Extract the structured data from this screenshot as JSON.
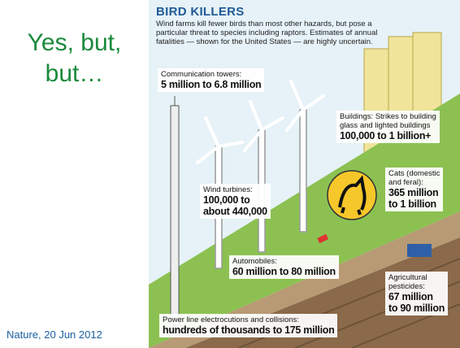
{
  "slide": {
    "title_lines": [
      "Yes, but,",
      "but…"
    ],
    "citation": "Nature, 20 Jun 2012"
  },
  "infographic": {
    "title": "BIRD KILLERS",
    "subtitle_lines": [
      "Wind farms kill fewer birds than most other hazards, but pose a",
      "particular threat to species including raptors. Estimates of annual",
      "fatalities — shown for the United States — are highly uncertain."
    ],
    "hazards": [
      {
        "name_lines": [
          "Communication towers:"
        ],
        "estimate_lines": [
          "5 million to 6.8 million"
        ]
      },
      {
        "name_lines": [
          "Buildings: Strikes to building",
          "glass and lighted buildings"
        ],
        "estimate_lines": [
          "100,000 to 1 billion+"
        ]
      },
      {
        "name_lines": [
          "Cats (domestic",
          "and feral):"
        ],
        "estimate_lines": [
          "365 million",
          "to 1 billion"
        ]
      },
      {
        "name_lines": [
          "Wind turbines:"
        ],
        "estimate_lines": [
          "100,000 to",
          "about 440,000"
        ]
      },
      {
        "name_lines": [
          "Automobiles:"
        ],
        "estimate_lines": [
          "60 million to 80 million"
        ]
      },
      {
        "name_lines": [
          "Agricultural",
          "pesticides:"
        ],
        "estimate_lines": [
          "67 million",
          "to 90 million"
        ]
      },
      {
        "name_lines": [
          "Power line electrocutions and collisions:"
        ],
        "estimate_lines": [
          "hundreds of thousands to 175 million"
        ]
      }
    ]
  }
}
